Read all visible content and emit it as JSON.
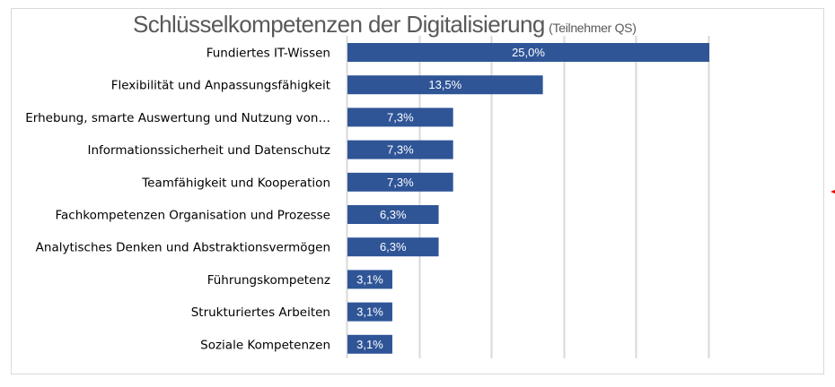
{
  "chart_data": {
    "type": "bar",
    "orientation": "horizontal",
    "title": "Schlüsselkompetenzen der Digitalisierung",
    "subtitle": "(Teilnehmer QS)",
    "xlabel": "",
    "ylabel": "",
    "xlim": [
      0,
      25
    ],
    "grid": true,
    "gridline_step": 5,
    "legend": "none",
    "bar_color": "#2F5597",
    "categories": [
      "Fundiertes IT-Wissen",
      "Flexibilität und Anpassungsfähigkeit",
      "Erhebung, smarte Auswertung und Nutzung von…",
      "Informationssicherheit und Datenschutz",
      "Teamfähigkeit und Kooperation",
      "Fachkompetenzen Organisation und Prozesse",
      "Analytisches Denken und Abstraktionsvermögen",
      "Führungskompetenz",
      "Strukturiertes Arbeiten",
      "Soziale Kompetenzen"
    ],
    "values": [
      25.0,
      13.5,
      7.3,
      7.3,
      7.3,
      6.3,
      6.3,
      3.1,
      3.1,
      3.1
    ],
    "data_labels": [
      "25,0%",
      "13,5%",
      "7,3%",
      "7,3%",
      "7,3%",
      "6,3%",
      "6,3%",
      "3,1%",
      "3,1%",
      "3,1%"
    ]
  },
  "colors": {
    "bar": "#2F5597",
    "title": "#595959",
    "gridline": "#d9d9d9",
    "frame": "#d9d9d9",
    "marker": "#e00000"
  }
}
